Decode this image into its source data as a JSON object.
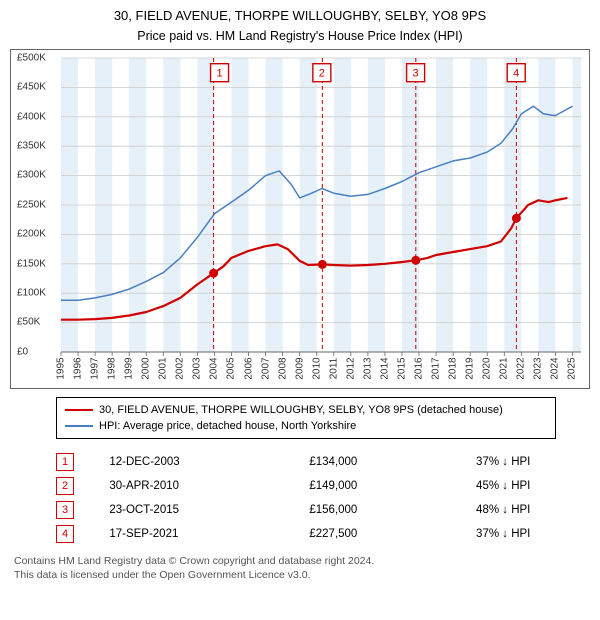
{
  "title_line1": "30, FIELD AVENUE, THORPE WILLOUGHBY, SELBY, YO8 9PS",
  "title_line2": "Price paid vs. HM Land Registry's House Price Index (HPI)",
  "chart": {
    "type": "line",
    "background_color": "#ffffff",
    "grid_color": "#cccccc",
    "shade_color": "#d6e6f5",
    "shade_opacity": 0.6,
    "x_years": [
      1995,
      1996,
      1997,
      1998,
      1999,
      2000,
      2001,
      2002,
      2003,
      2004,
      2005,
      2006,
      2007,
      2008,
      2009,
      2010,
      2011,
      2012,
      2013,
      2014,
      2015,
      2016,
      2017,
      2018,
      2019,
      2020,
      2021,
      2022,
      2023,
      2024,
      2025
    ],
    "xlim": [
      1995,
      2025.5
    ],
    "ylim": [
      0,
      500000
    ],
    "ytick_step": 50000,
    "ytick_labels": [
      "£0",
      "£50K",
      "£100K",
      "£150K",
      "£200K",
      "£250K",
      "£300K",
      "£350K",
      "£400K",
      "£450K",
      "£500K"
    ],
    "title_fontsize": 13,
    "label_fontsize": 10,
    "series": [
      {
        "name": "property",
        "color": "#d00000",
        "width": 2.2,
        "points": [
          [
            1995,
            55000
          ],
          [
            1996,
            55000
          ],
          [
            1997,
            56000
          ],
          [
            1998,
            58000
          ],
          [
            1999,
            62000
          ],
          [
            2000,
            68000
          ],
          [
            2001,
            78000
          ],
          [
            2002,
            92000
          ],
          [
            2003,
            115000
          ],
          [
            2003.95,
            134000
          ],
          [
            2004.5,
            145000
          ],
          [
            2005,
            160000
          ],
          [
            2006,
            172000
          ],
          [
            2007,
            180000
          ],
          [
            2007.7,
            183000
          ],
          [
            2008.3,
            175000
          ],
          [
            2009,
            155000
          ],
          [
            2009.5,
            148000
          ],
          [
            2010.33,
            149000
          ],
          [
            2011,
            148000
          ],
          [
            2012,
            147000
          ],
          [
            2013,
            148000
          ],
          [
            2014,
            150000
          ],
          [
            2015,
            153000
          ],
          [
            2015.81,
            156000
          ],
          [
            2016.5,
            160000
          ],
          [
            2017,
            165000
          ],
          [
            2018,
            170000
          ],
          [
            2019,
            175000
          ],
          [
            2020,
            180000
          ],
          [
            2020.8,
            188000
          ],
          [
            2021.4,
            210000
          ],
          [
            2021.71,
            227500
          ],
          [
            2022.4,
            250000
          ],
          [
            2023,
            258000
          ],
          [
            2023.6,
            255000
          ],
          [
            2024,
            258000
          ],
          [
            2024.7,
            262000
          ]
        ]
      },
      {
        "name": "hpi",
        "color": "#4a7fbf",
        "width": 1.5,
        "points": [
          [
            1995,
            88000
          ],
          [
            1996,
            88000
          ],
          [
            1997,
            92000
          ],
          [
            1998,
            98000
          ],
          [
            1999,
            107000
          ],
          [
            2000,
            120000
          ],
          [
            2001,
            135000
          ],
          [
            2002,
            160000
          ],
          [
            2003,
            195000
          ],
          [
            2004,
            235000
          ],
          [
            2005,
            255000
          ],
          [
            2006,
            275000
          ],
          [
            2007,
            300000
          ],
          [
            2007.8,
            308000
          ],
          [
            2008.5,
            285000
          ],
          [
            2009,
            262000
          ],
          [
            2009.7,
            270000
          ],
          [
            2010.3,
            278000
          ],
          [
            2011,
            270000
          ],
          [
            2012,
            265000
          ],
          [
            2013,
            268000
          ],
          [
            2014,
            278000
          ],
          [
            2015,
            290000
          ],
          [
            2016,
            305000
          ],
          [
            2017,
            315000
          ],
          [
            2018,
            325000
          ],
          [
            2019,
            330000
          ],
          [
            2020,
            340000
          ],
          [
            2020.8,
            355000
          ],
          [
            2021.5,
            380000
          ],
          [
            2022,
            405000
          ],
          [
            2022.7,
            418000
          ],
          [
            2023.3,
            405000
          ],
          [
            2024,
            402000
          ],
          [
            2024.5,
            410000
          ],
          [
            2025,
            418000
          ]
        ]
      }
    ],
    "sale_markers": [
      {
        "n": 1,
        "x": 2003.95,
        "y": 134000,
        "box_x": 2004.3,
        "box_y": 475000
      },
      {
        "n": 2,
        "x": 2010.33,
        "y": 149000,
        "box_x": 2010.3,
        "box_y": 475000
      },
      {
        "n": 3,
        "x": 2015.81,
        "y": 156000,
        "box_x": 2015.8,
        "box_y": 475000
      },
      {
        "n": 4,
        "x": 2021.71,
        "y": 227500,
        "box_x": 2021.7,
        "box_y": 475000
      }
    ],
    "shaded_year_bands": [
      [
        1995,
        1996
      ],
      [
        1997,
        1998
      ],
      [
        1999,
        2000
      ],
      [
        2001,
        2002
      ],
      [
        2003,
        2004
      ],
      [
        2005,
        2006
      ],
      [
        2007,
        2008
      ],
      [
        2009,
        2010
      ],
      [
        2011,
        2012
      ],
      [
        2013,
        2014
      ],
      [
        2015,
        2016
      ],
      [
        2017,
        2018
      ],
      [
        2019,
        2020
      ],
      [
        2021,
        2022
      ],
      [
        2023,
        2024
      ],
      [
        2025,
        2025.5
      ]
    ]
  },
  "legend": {
    "items": [
      {
        "label": "30, FIELD AVENUE, THORPE WILLOUGHBY, SELBY, YO8 9PS (detached house)",
        "color": "#d00000",
        "thick": 2.2
      },
      {
        "label": "HPI: Average price, detached house, North Yorkshire",
        "color": "#4a7fbf",
        "thick": 1.5
      }
    ]
  },
  "sales": [
    {
      "n": "1",
      "date": "12-DEC-2003",
      "price": "£134,000",
      "pct": "37%",
      "rel": "↓ HPI"
    },
    {
      "n": "2",
      "date": "30-APR-2010",
      "price": "£149,000",
      "pct": "45%",
      "rel": "↓ HPI"
    },
    {
      "n": "3",
      "date": "23-OCT-2015",
      "price": "£156,000",
      "pct": "48%",
      "rel": "↓ HPI"
    },
    {
      "n": "4",
      "date": "17-SEP-2021",
      "price": "£227,500",
      "pct": "37%",
      "rel": "↓ HPI"
    }
  ],
  "footer_line1": "Contains HM Land Registry data © Crown copyright and database right 2024.",
  "footer_line2": "This data is licensed under the Open Government Licence v3.0."
}
